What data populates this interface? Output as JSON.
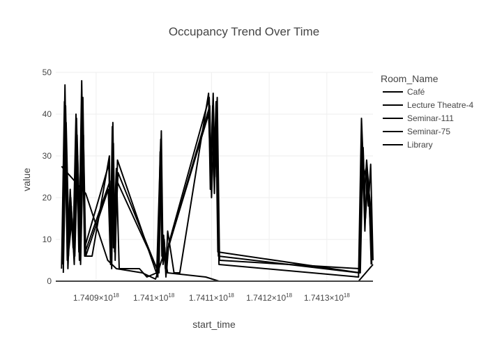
{
  "chart_data": {
    "type": "line",
    "title": "Occupancy Trend Over Time",
    "xlabel": "start_time",
    "ylabel": "value",
    "legend_title": "Room_Name",
    "legend_position": "right",
    "grid": true,
    "xlim": [
      1.74083e+18,
      1.74138e+18
    ],
    "ylim": [
      0,
      50
    ],
    "yticks": [
      0,
      10,
      20,
      30,
      40,
      50
    ],
    "xticks": [
      {
        "value": 1.7409e+18,
        "base": "1.7409×10",
        "exp": "18"
      },
      {
        "value": 1.741e+18,
        "base": "1.741×10",
        "exp": "18"
      },
      {
        "value": 1.7411e+18,
        "base": "1.7411×10",
        "exp": "18"
      },
      {
        "value": 1.7412e+18,
        "base": "1.7412×10",
        "exp": "18"
      },
      {
        "value": 1.7413e+18,
        "base": "1.7413×10",
        "exp": "18"
      }
    ],
    "series": [
      {
        "name": "Café",
        "color": "#000000",
        "x": [
          1.74084e+18,
          1.740845e+18,
          1.74085e+18,
          1.740855e+18,
          1.74086e+18,
          1.740865e+18,
          1.74087e+18,
          1.740875e+18,
          1.74088e+18,
          1.740885e+18,
          1.740893e+18,
          1.740923e+18,
          1.740925e+18,
          1.740928e+18,
          1.74093e+18,
          1.740935e+18,
          1.74094e+18,
          1.740975e+18,
          1.740988e+18,
          1.741005e+18,
          1.741012e+18,
          1.741015e+18,
          1.741018e+18,
          1.741021e+18,
          1.741024e+18,
          1.741035e+18,
          1.741045e+18,
          1.741095e+18,
          1.741098e+18,
          1.741102e+18,
          1.741105e+18,
          1.741108e+18,
          1.741113e+18,
          1.741355e+18,
          1.74136e+18,
          1.741364e+18,
          1.741368e+18,
          1.741372e+18,
          1.741376e+18,
          1.74138e+18
        ],
        "y": [
          3,
          43,
          5,
          22,
          8,
          40,
          7,
          48,
          6,
          6,
          6,
          30,
          10,
          37,
          8,
          27,
          3,
          3,
          1,
          2,
          34,
          6,
          10,
          3,
          12,
          2,
          2,
          45,
          22,
          42,
          30,
          43,
          4,
          1,
          39,
          25,
          27,
          18,
          28,
          5
        ]
      },
      {
        "name": "Lecture Theatre-4",
        "color": "#000000",
        "x": [
          1.740841e+18,
          1.740846e+18,
          1.740851e+18,
          1.740856e+18,
          1.740861e+18,
          1.740866e+18,
          1.740871e+18,
          1.740876e+18,
          1.74088e+18,
          1.740922e+18,
          1.740926e+18,
          1.740929e+18,
          1.740932e+18,
          1.740938e+18,
          1.741008e+18,
          1.741013e+18,
          1.741016e+18,
          1.741019e+18,
          1.741022e+18,
          1.741026e+18,
          1.741096e+18,
          1.741099e+18,
          1.741103e+18,
          1.741106e+18,
          1.741109e+18,
          1.741112e+18,
          1.741356e+18,
          1.741361e+18,
          1.741365e+18,
          1.741369e+18,
          1.741373e+18,
          1.741377e+18
        ],
        "y": [
          4,
          47,
          3,
          20,
          7,
          39,
          5,
          42,
          8,
          28,
          5,
          38,
          7,
          26,
          2,
          36,
          4,
          8,
          2,
          9,
          44,
          28,
          45,
          25,
          41,
          6,
          2,
          34,
          20,
          29,
          22,
          4
        ]
      },
      {
        "name": "Seminar-111",
        "color": "#000000",
        "x": [
          1.740842e+18,
          1.740847e+18,
          1.740852e+18,
          1.740857e+18,
          1.740862e+18,
          1.740867e+18,
          1.740872e+18,
          1.740877e+18,
          1.740881e+18,
          1.740924e+18,
          1.740927e+18,
          1.74093e+18,
          1.740933e+18,
          1.740937e+18,
          1.741007e+18,
          1.741011e+18,
          1.741014e+18,
          1.741017e+18,
          1.74102e+18,
          1.741023e+18,
          1.741097e+18,
          1.7411e+18,
          1.741104e+18,
          1.741107e+18,
          1.74111e+18,
          1.741114e+18,
          1.741357e+18,
          1.741362e+18,
          1.741366e+18,
          1.74137e+18,
          1.741374e+18,
          1.741378e+18
        ],
        "y": [
          5,
          42,
          6,
          18,
          4,
          35,
          9,
          44,
          7,
          24,
          3,
          33,
          5,
          29,
          1,
          31,
          6,
          11,
          3,
          7,
          42,
          20,
          37,
          33,
          44,
          5,
          3,
          30,
          12,
          26,
          17,
          4
        ]
      },
      {
        "name": "Seminar-75",
        "color": "#000000",
        "x": [
          1.740843e+18,
          1.740848e+18,
          1.740853e+18,
          1.740858e+18,
          1.740863e+18,
          1.740868e+18,
          1.740873e+18,
          1.740878e+18,
          1.740882e+18,
          1.740921e+18,
          1.740925e+18,
          1.740928e+18,
          1.740931e+18,
          1.740936e+18,
          1.741009e+18,
          1.741012e+18,
          1.741015e+18,
          1.741018e+18,
          1.741021e+18,
          1.741025e+18,
          1.741095e+18,
          1.741099e+18,
          1.741102e+18,
          1.741105e+18,
          1.741108e+18,
          1.741111e+18,
          1.741358e+18,
          1.741363e+18,
          1.741367e+18,
          1.741371e+18,
          1.741375e+18,
          1.741379e+18
        ],
        "y": [
          2,
          38,
          8,
          15,
          6,
          30,
          4,
          35,
          6,
          22,
          4,
          29,
          8,
          24,
          2,
          28,
          5,
          10,
          1,
          8,
          40,
          25,
          38,
          21,
          35,
          7,
          2,
          32,
          15,
          24,
          19,
          5
        ]
      },
      {
        "name": "Library",
        "color": "#000000",
        "x": [
          1.74084e+18,
          1.740882e+18,
          1.74092e+18,
          1.740935e+18,
          1.74098e+18,
          1.741003e+18,
          1.741016e+18,
          1.741018e+18,
          1.741024e+18,
          1.74109e+18,
          1.741113e+18,
          1.741355e+18,
          1.74138e+18
        ],
        "y": [
          27.5,
          21,
          5,
          3,
          2,
          0.5,
          6,
          7,
          2,
          1,
          0,
          0,
          4
        ]
      }
    ]
  }
}
